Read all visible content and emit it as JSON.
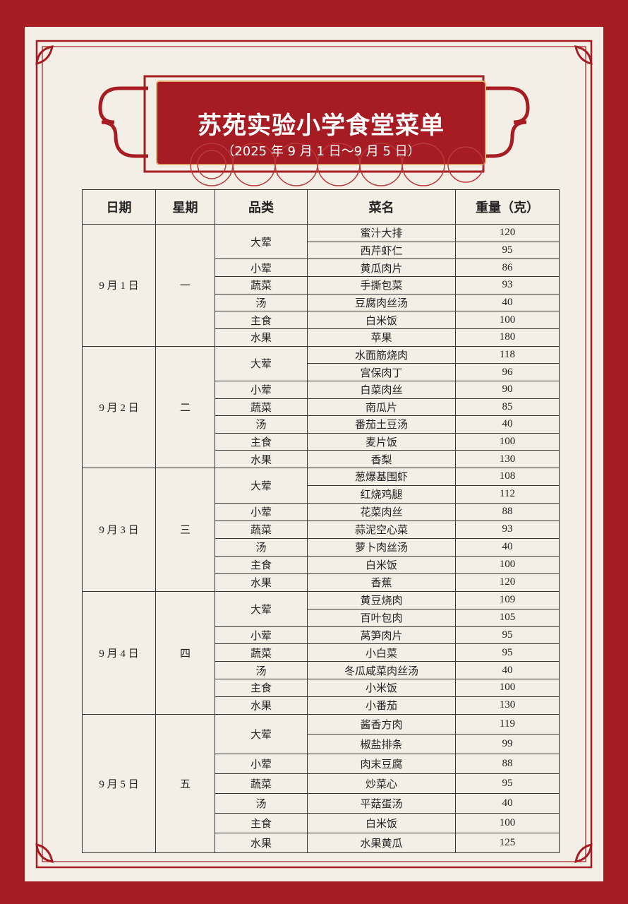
{
  "header": {
    "title": "苏苑实验小学食堂菜单",
    "subtitle": "（2025 年 9 月 1 日～9 月 5 日）"
  },
  "table": {
    "columns": [
      "日期",
      "星期",
      "品类",
      "菜名",
      "重量（克）"
    ],
    "days": [
      {
        "date": "9 月 1 日",
        "weekday": "一",
        "groups": [
          {
            "category": "大荤",
            "items": [
              {
                "dish": "蜜汁大排",
                "weight": 120
              },
              {
                "dish": "西芹虾仁",
                "weight": 95
              }
            ]
          },
          {
            "category": "小荤",
            "items": [
              {
                "dish": "黄瓜肉片",
                "weight": 86
              }
            ]
          },
          {
            "category": "蔬菜",
            "items": [
              {
                "dish": "手撕包菜",
                "weight": 93
              }
            ]
          },
          {
            "category": "汤",
            "items": [
              {
                "dish": "豆腐肉丝汤",
                "weight": 40
              }
            ]
          },
          {
            "category": "主食",
            "items": [
              {
                "dish": "白米饭",
                "weight": 100
              }
            ]
          },
          {
            "category": "水果",
            "items": [
              {
                "dish": "苹果",
                "weight": 180
              }
            ]
          }
        ]
      },
      {
        "date": "9 月 2 日",
        "weekday": "二",
        "groups": [
          {
            "category": "大荤",
            "items": [
              {
                "dish": "水面筋烧肉",
                "weight": 118
              },
              {
                "dish": "宫保肉丁",
                "weight": 96
              }
            ]
          },
          {
            "category": "小荤",
            "items": [
              {
                "dish": "白菜肉丝",
                "weight": 90
              }
            ]
          },
          {
            "category": "蔬菜",
            "items": [
              {
                "dish": "南瓜片",
                "weight": 85
              }
            ]
          },
          {
            "category": "汤",
            "items": [
              {
                "dish": "番茄土豆汤",
                "weight": 40
              }
            ]
          },
          {
            "category": "主食",
            "items": [
              {
                "dish": "麦片饭",
                "weight": 100
              }
            ]
          },
          {
            "category": "水果",
            "items": [
              {
                "dish": "香梨",
                "weight": 130
              }
            ]
          }
        ]
      },
      {
        "date": "9 月 3 日",
        "weekday": "三",
        "groups": [
          {
            "category": "大荤",
            "items": [
              {
                "dish": "葱爆基围虾",
                "weight": 108
              },
              {
                "dish": "红烧鸡腿",
                "weight": 112
              }
            ]
          },
          {
            "category": "小荤",
            "items": [
              {
                "dish": "花菜肉丝",
                "weight": 88
              }
            ]
          },
          {
            "category": "蔬菜",
            "items": [
              {
                "dish": "蒜泥空心菜",
                "weight": 93
              }
            ]
          },
          {
            "category": "汤",
            "items": [
              {
                "dish": "萝卜肉丝汤",
                "weight": 40
              }
            ]
          },
          {
            "category": "主食",
            "items": [
              {
                "dish": "白米饭",
                "weight": 100
              }
            ]
          },
          {
            "category": "水果",
            "items": [
              {
                "dish": "香蕉",
                "weight": 120
              }
            ]
          }
        ]
      },
      {
        "date": "9 月 4 日",
        "weekday": "四",
        "groups": [
          {
            "category": "大荤",
            "items": [
              {
                "dish": "黄豆烧肉",
                "weight": 109
              },
              {
                "dish": "百叶包肉",
                "weight": 105
              }
            ]
          },
          {
            "category": "小荤",
            "items": [
              {
                "dish": "莴笋肉片",
                "weight": 95
              }
            ]
          },
          {
            "category": "蔬菜",
            "items": [
              {
                "dish": "小白菜",
                "weight": 95
              }
            ]
          },
          {
            "category": "汤",
            "items": [
              {
                "dish": "冬瓜咸菜肉丝汤",
                "weight": 40
              }
            ]
          },
          {
            "category": "主食",
            "items": [
              {
                "dish": "小米饭",
                "weight": 100
              }
            ]
          },
          {
            "category": "水果",
            "items": [
              {
                "dish": "小番茄",
                "weight": 130
              }
            ]
          }
        ]
      },
      {
        "date": "9 月 5 日",
        "weekday": "五",
        "groups": [
          {
            "category": "大荤",
            "items": [
              {
                "dish": "酱香方肉",
                "weight": 119
              },
              {
                "dish": "椒盐排条",
                "weight": 99
              }
            ]
          },
          {
            "category": "小荤",
            "items": [
              {
                "dish": "肉末豆腐",
                "weight": 88
              }
            ]
          },
          {
            "category": "蔬菜",
            "items": [
              {
                "dish": "炒菜心",
                "weight": 95
              }
            ]
          },
          {
            "category": "汤",
            "items": [
              {
                "dish": "平菇蛋汤",
                "weight": 40
              }
            ]
          },
          {
            "category": "主食",
            "items": [
              {
                "dish": "白米饭",
                "weight": 100
              }
            ]
          },
          {
            "category": "水果",
            "items": [
              {
                "dish": "水果黄瓜",
                "weight": 125
              }
            ]
          }
        ]
      }
    ]
  }
}
